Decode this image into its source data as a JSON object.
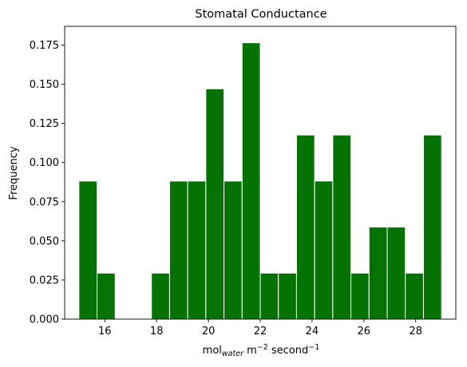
{
  "chart_data": {
    "type": "bar",
    "title": "Stomatal Conductance",
    "xlabel": {
      "base": "mol",
      "sub": "water",
      "mid": " m",
      "sup1": "−2",
      "tail": " second",
      "sup2": "−1"
    },
    "ylabel": "Frequency",
    "xlim": [
      14.45,
      29.55
    ],
    "ylim": [
      0,
      0.187
    ],
    "xticks": [
      16,
      18,
      20,
      22,
      24,
      26,
      28
    ],
    "xtick_labels": [
      "16",
      "18",
      "20",
      "22",
      "24",
      "26",
      "28"
    ],
    "yticks": [
      0.0,
      0.025,
      0.05,
      0.075,
      0.1,
      0.125,
      0.15,
      0.175
    ],
    "ytick_labels": [
      "0.000",
      "0.025",
      "0.050",
      "0.075",
      "0.100",
      "0.125",
      "0.150",
      "0.175"
    ],
    "bar_color": "#047304",
    "bar_edge_color": "#ffffff",
    "bins": [
      {
        "start": 15.0,
        "end": 15.7,
        "value": 0.0882
      },
      {
        "start": 15.7,
        "end": 16.4,
        "value": 0.0294
      },
      {
        "start": 16.4,
        "end": 17.1,
        "value": 0.0
      },
      {
        "start": 17.1,
        "end": 17.8,
        "value": 0.0
      },
      {
        "start": 17.8,
        "end": 18.5,
        "value": 0.0294
      },
      {
        "start": 18.5,
        "end": 19.2,
        "value": 0.0882
      },
      {
        "start": 19.2,
        "end": 19.9,
        "value": 0.0882
      },
      {
        "start": 19.9,
        "end": 20.6,
        "value": 0.1471
      },
      {
        "start": 20.6,
        "end": 21.3,
        "value": 0.0882
      },
      {
        "start": 21.3,
        "end": 22.0,
        "value": 0.1765
      },
      {
        "start": 22.0,
        "end": 22.7,
        "value": 0.0294
      },
      {
        "start": 22.7,
        "end": 23.4,
        "value": 0.0294
      },
      {
        "start": 23.4,
        "end": 24.1,
        "value": 0.1176
      },
      {
        "start": 24.1,
        "end": 24.8,
        "value": 0.0882
      },
      {
        "start": 24.8,
        "end": 25.5,
        "value": 0.1176
      },
      {
        "start": 25.5,
        "end": 26.2,
        "value": 0.0294
      },
      {
        "start": 26.2,
        "end": 26.9,
        "value": 0.0588
      },
      {
        "start": 26.9,
        "end": 27.6,
        "value": 0.0588
      },
      {
        "start": 27.6,
        "end": 28.3,
        "value": 0.0294
      },
      {
        "start": 28.3,
        "end": 29.0,
        "value": 0.1176
      }
    ]
  }
}
